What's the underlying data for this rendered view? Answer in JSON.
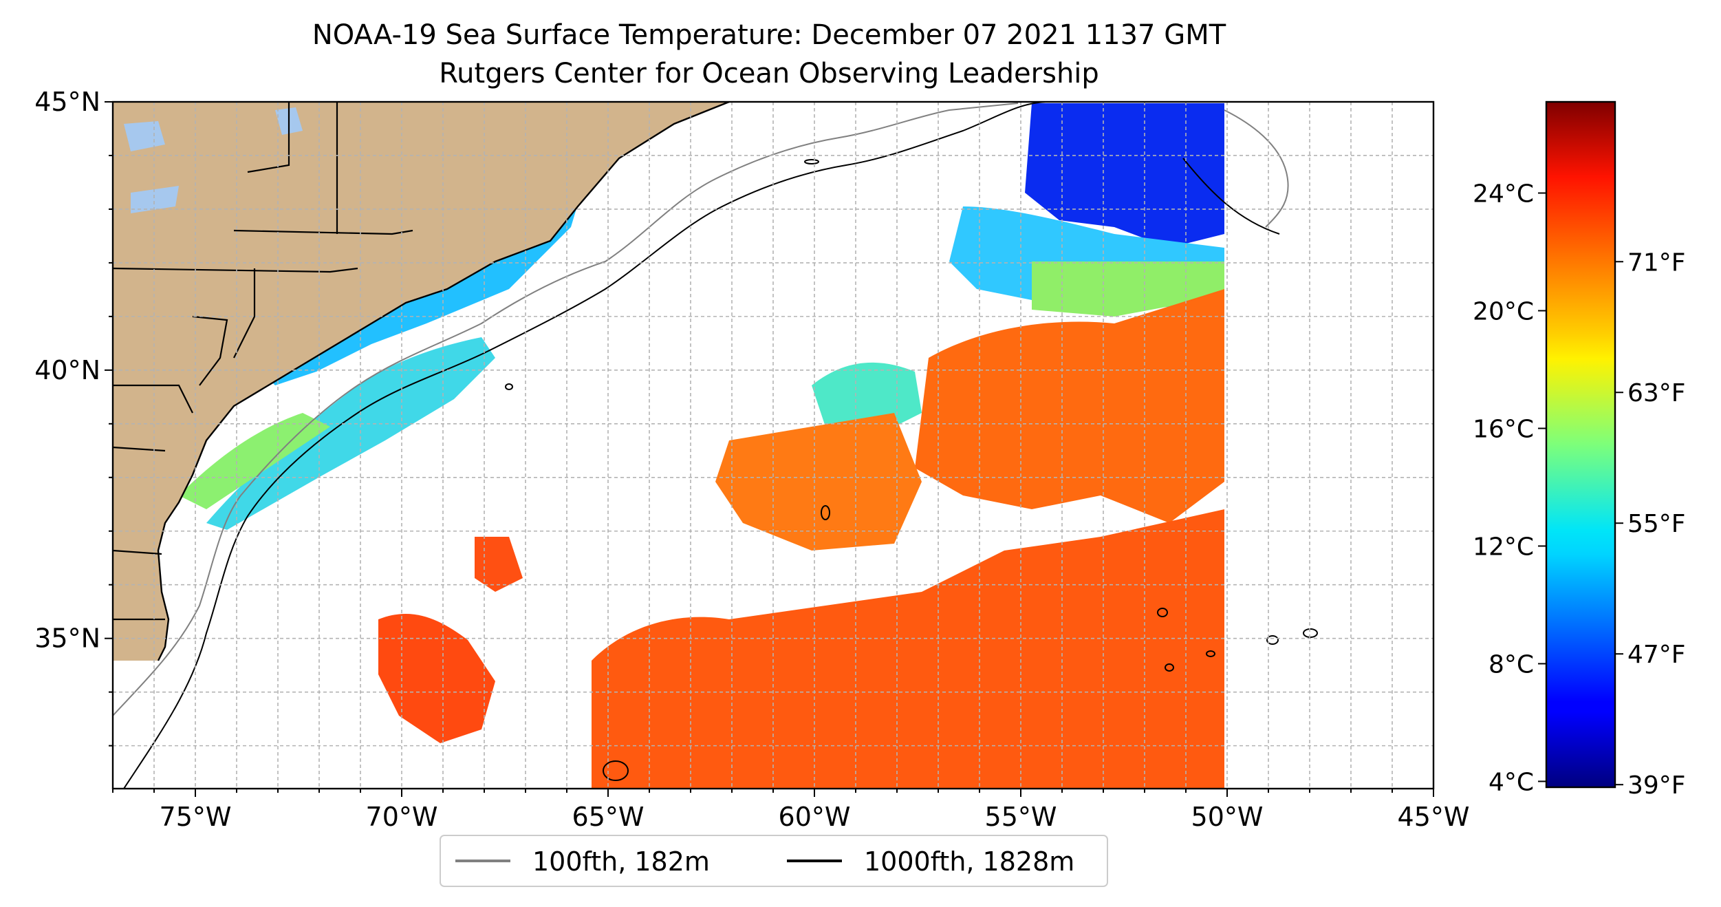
{
  "title": {
    "line1": "NOAA-19 Sea Surface Temperature: December 07 2021 1137 GMT",
    "line2": "Rutgers Center for Ocean Observing Leadership"
  },
  "map": {
    "lon_range": [
      -77,
      -45
    ],
    "lat_range": [
      32.2,
      45
    ],
    "lon_ticks": [
      {
        "v": -75,
        "label": "75°W"
      },
      {
        "v": -70,
        "label": "70°W"
      },
      {
        "v": -65,
        "label": "65°W"
      },
      {
        "v": -60,
        "label": "60°W"
      },
      {
        "v": -55,
        "label": "55°W"
      },
      {
        "v": -50,
        "label": "50°W"
      },
      {
        "v": -45,
        "label": "45°W"
      }
    ],
    "lat_ticks": [
      {
        "v": 45,
        "label": "45°N"
      },
      {
        "v": 40,
        "label": "40°N"
      },
      {
        "v": 35,
        "label": "35°N"
      }
    ],
    "grid": true,
    "colors": {
      "land": "#d2b48c",
      "lakes": "#a6c8ee",
      "grid": "#b3b3b3"
    }
  },
  "colorbar": {
    "colormap": "jet",
    "range_c": [
      3.8,
      27.1
    ],
    "celsius_ticks": [
      {
        "v": 4,
        "label": "4°C"
      },
      {
        "v": 8,
        "label": "8°C"
      },
      {
        "v": 12,
        "label": "12°C"
      },
      {
        "v": 16,
        "label": "16°C"
      },
      {
        "v": 20,
        "label": "20°C"
      },
      {
        "v": 24,
        "label": "24°C"
      }
    ],
    "fahrenheit_ticks": [
      {
        "v": 39,
        "label": "39°F"
      },
      {
        "v": 47,
        "label": "47°F"
      },
      {
        "v": 55,
        "label": "55°F"
      },
      {
        "v": 63,
        "label": "63°F"
      },
      {
        "v": 71,
        "label": "71°F"
      }
    ]
  },
  "legend": {
    "placement": "bottom-center",
    "items": [
      {
        "label": "100fth, 182m",
        "color": "#808080"
      },
      {
        "label": "1000fth, 1828m",
        "color": "#000000"
      }
    ]
  }
}
